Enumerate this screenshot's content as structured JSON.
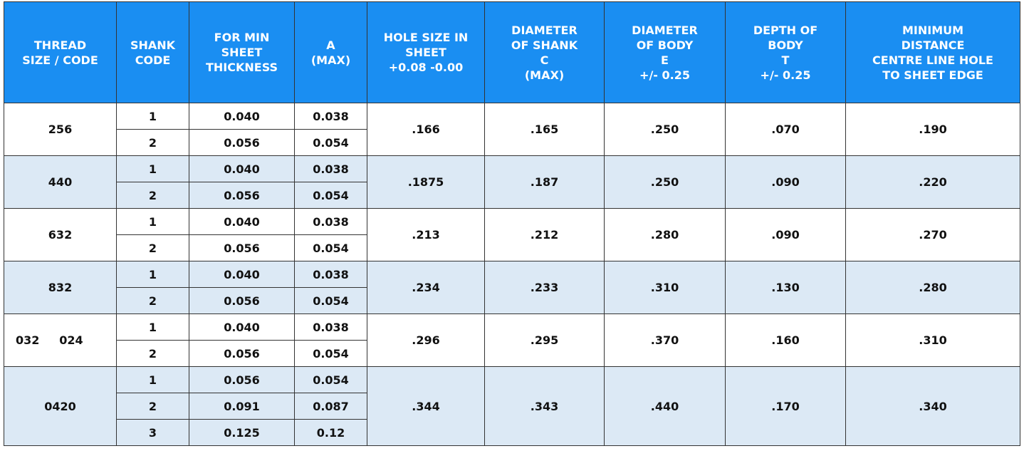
{
  "table": {
    "headers": [
      [
        "THREAD",
        "SIZE /  CODE"
      ],
      [
        "SHANK",
        "CODE"
      ],
      [
        "FOR MIN",
        "SHEET",
        "THICKNESS"
      ],
      [
        "A",
        "(MAX)"
      ],
      [
        "HOLE SIZE IN",
        "SHEET",
        "+0.08 -0.00"
      ],
      [
        "DIAMETER",
        "OF SHANK",
        "C",
        "(MAX)"
      ],
      [
        "DIAMETER",
        "OF BODY",
        "E",
        "+/- 0.25"
      ],
      [
        "DEPTH OF",
        "BODY",
        "T",
        "+/- 0.25"
      ],
      [
        "MINIMUM",
        "DISTANCE",
        "CENTRE LINE HOLE",
        "TO SHEET EDGE"
      ]
    ],
    "groups": [
      {
        "thread": "256",
        "shanks": [
          [
            "1",
            "0.040",
            "0.038"
          ],
          [
            "2",
            "0.056",
            "0.054"
          ]
        ],
        "hole": ".166",
        "shank_dia": ".165",
        "body_dia": ".250",
        "depth": ".070",
        "min_dist": ".190"
      },
      {
        "thread": "440",
        "shanks": [
          [
            "1",
            "0.040",
            "0.038"
          ],
          [
            "2",
            "0.056",
            "0.054"
          ]
        ],
        "hole": ".1875",
        "shank_dia": ".187",
        "body_dia": ".250",
        "depth": ".090",
        "min_dist": ".220"
      },
      {
        "thread": "632",
        "shanks": [
          [
            "1",
            "0.040",
            "0.038"
          ],
          [
            "2",
            "0.056",
            "0.054"
          ]
        ],
        "hole": ".213",
        "shank_dia": ".212",
        "body_dia": ".280",
        "depth": ".090",
        "min_dist": ".270"
      },
      {
        "thread": "832",
        "shanks": [
          [
            "1",
            "0.040",
            "0.038"
          ],
          [
            "2",
            "0.056",
            "0.054"
          ]
        ],
        "hole": ".234",
        "shank_dia": ".233",
        "body_dia": ".310",
        "depth": ".130",
        "min_dist": ".280"
      },
      {
        "thread": "032     024",
        "shanks": [
          [
            "1",
            "0.040",
            "0.038"
          ],
          [
            "2",
            "0.056",
            "0.054"
          ]
        ],
        "hole": ".296",
        "shank_dia": ".295",
        "body_dia": ".370",
        "depth": ".160",
        "min_dist": ".310"
      },
      {
        "thread": "0420",
        "shanks": [
          [
            "1",
            "0.056",
            "0.054"
          ],
          [
            "2",
            "0.091",
            "0.087"
          ],
          [
            "3",
            "0.125",
            "0.12"
          ]
        ],
        "hole": ".344",
        "shank_dia": ".343",
        "body_dia": ".440",
        "depth": ".170",
        "min_dist": ".340"
      }
    ]
  }
}
